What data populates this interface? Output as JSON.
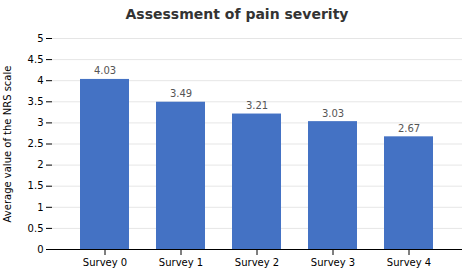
{
  "chart_data": {
    "type": "bar",
    "title": "Assessment of pain severity",
    "ylabel": "Average value of the NRS scale",
    "categories": [
      "Survey 0",
      "Survey 1",
      "Survey 2",
      "Survey 3",
      "Survey 4"
    ],
    "values": [
      4.03,
      3.49,
      3.21,
      3.03,
      2.67
    ],
    "color": "#4472C4",
    "ylim": [
      0,
      5
    ],
    "yticks": [
      0,
      0.5,
      1.0,
      1.5,
      2.0,
      2.5,
      3.0,
      3.5,
      4.0,
      4.5,
      5.0
    ],
    "grid": true,
    "data_labels": true
  }
}
